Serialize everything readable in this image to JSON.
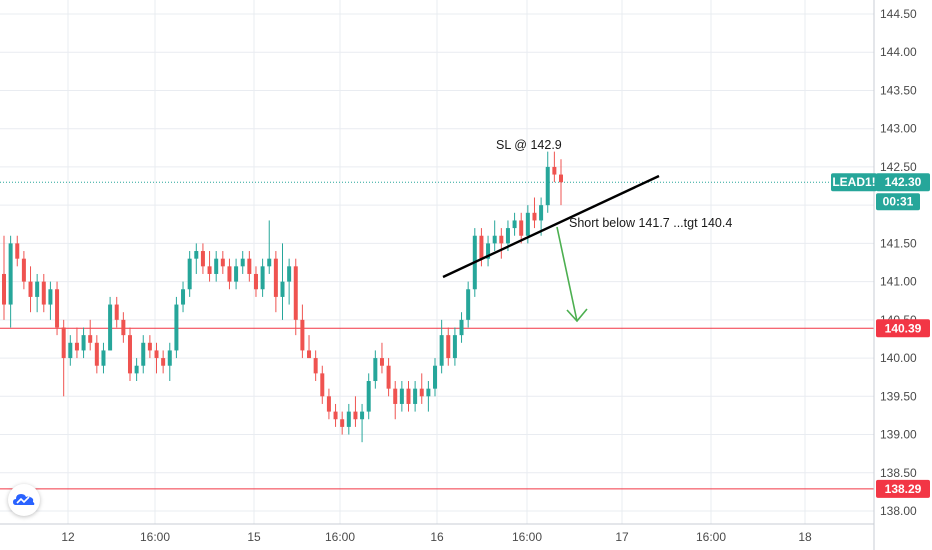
{
  "chart_data": {
    "type": "candlestick",
    "symbol_tag": "LEAD1!",
    "last_price": "142.30",
    "countdown": "00:31",
    "y_axis_ticks": [
      "138.00",
      "138.50",
      "139.00",
      "139.50",
      "140.00",
      "140.50",
      "141.00",
      "141.50",
      "142.00",
      "142.50",
      "143.00",
      "143.50",
      "144.00",
      "144.50"
    ],
    "x_axis_ticks": [
      "12",
      "16:00",
      "15",
      "16:00",
      "16",
      "16:00",
      "17",
      "16:00",
      "18"
    ],
    "ylim": [
      137.95,
      144.6
    ],
    "horizontal_levels": [
      {
        "price": 140.39,
        "label": "140.39",
        "color": "#f23645"
      },
      {
        "price": 138.29,
        "label": "138.29",
        "color": "#f23645"
      }
    ],
    "trendline": {
      "from": {
        "x": "16 ~02:00",
        "price": 141.05
      },
      "to": {
        "x": "17 ~10:00",
        "price": 142.35
      },
      "color": "#000000"
    },
    "target_arrow": {
      "from_price": 141.7,
      "to_price": 140.5,
      "color": "#4caf50"
    },
    "annotations": [
      {
        "text": "SL @ 142.9"
      },
      {
        "text": "Short below 141.7 ...tgt 140.4"
      }
    ],
    "colors": {
      "up": "#26a69a",
      "down": "#ef5350",
      "grid": "#e9ecf1",
      "last_price": "#26a69a"
    },
    "candles": [
      [
        141.1,
        141.6,
        140.5,
        140.7
      ],
      [
        140.7,
        141.6,
        140.4,
        141.5
      ],
      [
        141.5,
        141.6,
        141.2,
        141.3
      ],
      [
        141.3,
        141.4,
        140.9,
        141.0
      ],
      [
        141.0,
        141.2,
        140.6,
        140.8
      ],
      [
        140.8,
        141.1,
        140.6,
        141.0
      ],
      [
        141.0,
        141.1,
        140.6,
        140.7
      ],
      [
        140.7,
        141.0,
        140.5,
        140.9
      ],
      [
        140.9,
        141.0,
        140.3,
        140.4
      ],
      [
        140.4,
        140.5,
        139.5,
        140.0
      ],
      [
        140.0,
        140.3,
        139.9,
        140.2
      ],
      [
        140.2,
        140.4,
        140.0,
        140.1
      ],
      [
        140.1,
        140.4,
        140.0,
        140.3
      ],
      [
        140.3,
        140.5,
        140.1,
        140.2
      ],
      [
        140.2,
        140.3,
        139.8,
        139.9
      ],
      [
        139.9,
        140.2,
        139.8,
        140.1
      ],
      [
        140.1,
        140.8,
        140.1,
        140.7
      ],
      [
        140.7,
        140.8,
        140.4,
        140.5
      ],
      [
        140.5,
        140.6,
        140.2,
        140.3
      ],
      [
        140.3,
        140.4,
        139.7,
        139.8
      ],
      [
        139.8,
        140.0,
        139.7,
        139.9
      ],
      [
        139.9,
        140.3,
        139.8,
        140.2
      ],
      [
        140.2,
        140.3,
        140.0,
        140.1
      ],
      [
        140.1,
        140.2,
        139.8,
        140.0
      ],
      [
        140.0,
        140.1,
        139.8,
        139.9
      ],
      [
        139.9,
        140.2,
        139.7,
        140.1
      ],
      [
        140.1,
        140.8,
        140.0,
        140.7
      ],
      [
        140.7,
        141.0,
        140.6,
        140.9
      ],
      [
        140.9,
        141.4,
        140.8,
        141.3
      ],
      [
        141.3,
        141.5,
        141.1,
        141.4
      ],
      [
        141.4,
        141.5,
        141.1,
        141.2
      ],
      [
        141.2,
        141.4,
        141.0,
        141.1
      ],
      [
        141.1,
        141.4,
        141.0,
        141.3
      ],
      [
        141.3,
        141.4,
        141.1,
        141.2
      ],
      [
        141.2,
        141.3,
        140.9,
        141.0
      ],
      [
        141.0,
        141.3,
        140.9,
        141.2
      ],
      [
        141.2,
        141.4,
        141.1,
        141.3
      ],
      [
        141.3,
        141.4,
        141.0,
        141.1
      ],
      [
        141.1,
        141.2,
        140.8,
        140.9
      ],
      [
        140.9,
        141.3,
        140.8,
        141.2
      ],
      [
        141.2,
        141.8,
        141.1,
        141.3
      ],
      [
        141.3,
        141.4,
        140.6,
        140.8
      ],
      [
        140.8,
        141.5,
        140.5,
        141.0
      ],
      [
        141.0,
        141.3,
        140.7,
        141.2
      ],
      [
        141.2,
        141.3,
        140.3,
        140.5
      ],
      [
        140.5,
        140.7,
        140.0,
        140.1
      ],
      [
        140.1,
        140.3,
        140.0,
        140.0
      ],
      [
        140.0,
        140.1,
        139.7,
        139.8
      ],
      [
        139.8,
        139.9,
        139.4,
        139.5
      ],
      [
        139.5,
        139.6,
        139.2,
        139.3
      ],
      [
        139.3,
        139.4,
        139.1,
        139.2
      ],
      [
        139.2,
        139.3,
        139.0,
        139.1
      ],
      [
        139.1,
        139.4,
        139.0,
        139.3
      ],
      [
        139.3,
        139.5,
        139.1,
        139.2
      ],
      [
        139.2,
        139.4,
        138.9,
        139.3
      ],
      [
        139.3,
        139.8,
        139.2,
        139.7
      ],
      [
        139.7,
        140.1,
        139.6,
        140.0
      ],
      [
        140.0,
        140.2,
        139.8,
        139.9
      ],
      [
        139.9,
        140.0,
        139.5,
        139.6
      ],
      [
        139.6,
        139.7,
        139.2,
        139.4
      ],
      [
        139.4,
        139.7,
        139.3,
        139.6
      ],
      [
        139.6,
        139.7,
        139.3,
        139.4
      ],
      [
        139.4,
        139.7,
        139.3,
        139.6
      ],
      [
        139.6,
        139.8,
        139.4,
        139.5
      ],
      [
        139.5,
        139.7,
        139.3,
        139.6
      ],
      [
        139.6,
        140.0,
        139.5,
        139.9
      ],
      [
        139.9,
        140.5,
        139.8,
        140.3
      ],
      [
        140.3,
        140.4,
        139.9,
        140.0
      ],
      [
        140.0,
        140.4,
        139.9,
        140.3
      ],
      [
        140.3,
        140.6,
        140.2,
        140.5
      ],
      [
        140.5,
        141.0,
        140.4,
        140.9
      ],
      [
        140.9,
        141.7,
        140.8,
        141.6
      ],
      [
        141.6,
        141.7,
        141.2,
        141.3
      ],
      [
        141.3,
        141.6,
        141.2,
        141.5
      ],
      [
        141.5,
        141.8,
        141.4,
        141.6
      ],
      [
        141.6,
        141.7,
        141.3,
        141.5
      ],
      [
        141.5,
        141.8,
        141.4,
        141.7
      ],
      [
        141.7,
        141.9,
        141.6,
        141.8
      ],
      [
        141.8,
        141.9,
        141.5,
        141.6
      ],
      [
        141.6,
        142.0,
        141.5,
        141.9
      ],
      [
        141.9,
        142.1,
        141.7,
        141.8
      ],
      [
        141.8,
        142.1,
        141.6,
        142.0
      ],
      [
        142.0,
        142.7,
        141.9,
        142.5
      ],
      [
        142.5,
        142.7,
        142.3,
        142.4
      ],
      [
        142.4,
        142.6,
        142.0,
        142.3
      ]
    ]
  },
  "logo": {
    "icon": "tradingview-cloud-icon"
  }
}
